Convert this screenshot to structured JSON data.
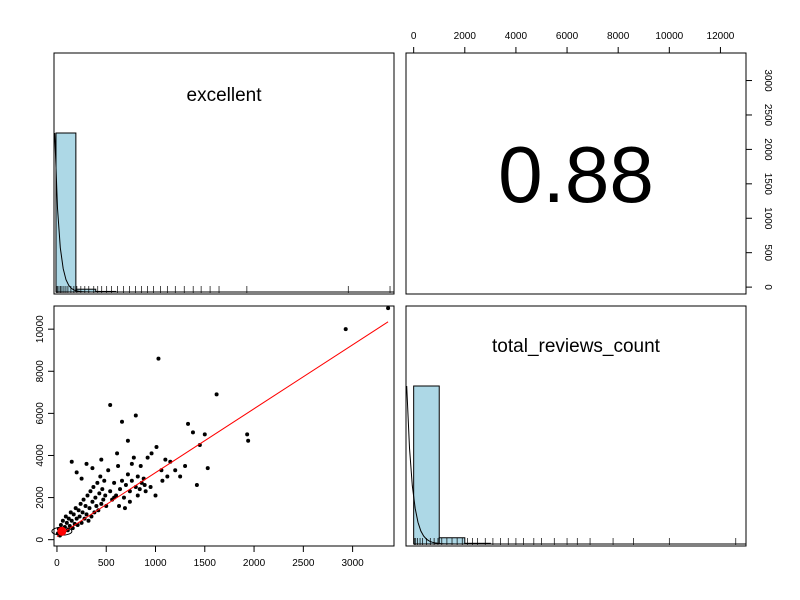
{
  "chart_data": {
    "type": "pairs",
    "variables": [
      "excellent",
      "total_reviews_count"
    ],
    "correlation": {
      "label": "0.88",
      "value": 0.88
    },
    "panels": {
      "excellent_hist": {
        "label": "excellent",
        "bins": [
          {
            "x0": 0,
            "x1": 200,
            "count": 2280
          },
          {
            "x0": 200,
            "x1": 400,
            "count": 40
          },
          {
            "x0": 400,
            "x1": 600,
            "count": 8
          }
        ],
        "xlim": [
          -20,
          3400
        ],
        "rug": [
          5,
          15,
          30,
          45,
          60,
          80,
          100,
          120,
          150,
          180,
          210,
          250,
          290,
          330,
          380,
          420,
          460,
          510,
          560,
          620,
          680,
          740,
          800,
          860,
          920,
          980,
          1050,
          1120,
          1200,
          1290,
          1380,
          1460,
          1550,
          1640,
          1920,
          2940,
          3360
        ]
      },
      "total_hist": {
        "label": "total_reviews_count",
        "bins": [
          {
            "x0": 0,
            "x1": 1000,
            "count": 2280
          },
          {
            "x0": 1000,
            "x1": 2000,
            "count": 90
          },
          {
            "x0": 2000,
            "x1": 3000,
            "count": 10
          }
        ],
        "xlim": [
          -300,
          13000
        ],
        "rug": [
          30,
          80,
          150,
          250,
          350,
          500,
          650,
          800,
          950,
          1100,
          1300,
          1500,
          1700,
          1900,
          2100,
          2300,
          2500,
          2800,
          3100,
          3400,
          3700,
          4000,
          4300,
          4700,
          5000,
          5500,
          6000,
          6400,
          6900,
          7800,
          8600,
          10000,
          12600
        ]
      },
      "scatter": {
        "xlim": [
          -30,
          3420
        ],
        "ylim": [
          -300,
          11100
        ],
        "xticks": [
          0,
          500,
          1000,
          1500,
          2000,
          2500,
          3000
        ],
        "yticks": [
          0,
          2000,
          4000,
          6000,
          8000,
          10000
        ],
        "fit": {
          "x": [
            0,
            3360
          ],
          "y": [
            150,
            10350
          ]
        },
        "highlight": {
          "x": 50,
          "y": 400
        },
        "points": [
          [
            10,
            300
          ],
          [
            20,
            500
          ],
          [
            30,
            200
          ],
          [
            40,
            700
          ],
          [
            50,
            400
          ],
          [
            60,
            900
          ],
          [
            70,
            350
          ],
          [
            80,
            600
          ],
          [
            90,
            1100
          ],
          [
            100,
            800
          ],
          [
            110,
            450
          ],
          [
            120,
            1000
          ],
          [
            130,
            650
          ],
          [
            140,
            1300
          ],
          [
            150,
            900
          ],
          [
            160,
            550
          ],
          [
            170,
            1200
          ],
          [
            180,
            750
          ],
          [
            190,
            1500
          ],
          [
            200,
            1000
          ],
          [
            210,
            700
          ],
          [
            220,
            1400
          ],
          [
            230,
            1100
          ],
          [
            240,
            1700
          ],
          [
            250,
            800
          ],
          [
            260,
            1300
          ],
          [
            270,
            1900
          ],
          [
            280,
            1000
          ],
          [
            290,
            1600
          ],
          [
            300,
            1200
          ],
          [
            310,
            2100
          ],
          [
            320,
            900
          ],
          [
            330,
            1500
          ],
          [
            340,
            2300
          ],
          [
            350,
            1100
          ],
          [
            360,
            1800
          ],
          [
            370,
            2500
          ],
          [
            380,
            1300
          ],
          [
            390,
            2000
          ],
          [
            400,
            1600
          ],
          [
            410,
            2700
          ],
          [
            420,
            1400
          ],
          [
            430,
            2200
          ],
          [
            440,
            3000
          ],
          [
            450,
            1700
          ],
          [
            460,
            2400
          ],
          [
            470,
            1900
          ],
          [
            480,
            2800
          ],
          [
            490,
            2100
          ],
          [
            500,
            1600
          ],
          [
            520,
            3300
          ],
          [
            540,
            2300
          ],
          [
            560,
            1900
          ],
          [
            580,
            2700
          ],
          [
            600,
            2100
          ],
          [
            620,
            3500
          ],
          [
            640,
            2400
          ],
          [
            660,
            2800
          ],
          [
            680,
            2000
          ],
          [
            700,
            2600
          ],
          [
            720,
            3100
          ],
          [
            740,
            2300
          ],
          [
            760,
            2800
          ],
          [
            780,
            3900
          ],
          [
            800,
            2500
          ],
          [
            820,
            3000
          ],
          [
            840,
            2400
          ],
          [
            860,
            2700
          ],
          [
            880,
            2900
          ],
          [
            900,
            2300
          ],
          [
            150,
            3700
          ],
          [
            200,
            3200
          ],
          [
            250,
            2900
          ],
          [
            300,
            3600
          ],
          [
            360,
            3400
          ],
          [
            450,
            3800
          ],
          [
            540,
            6400
          ],
          [
            610,
            4100
          ],
          [
            660,
            5600
          ],
          [
            720,
            4700
          ],
          [
            760,
            3600
          ],
          [
            800,
            5900
          ],
          [
            850,
            3500
          ],
          [
            920,
            3900
          ],
          [
            960,
            4100
          ],
          [
            1010,
            4400
          ],
          [
            1030,
            8600
          ],
          [
            1060,
            3300
          ],
          [
            1100,
            3800
          ],
          [
            1150,
            3700
          ],
          [
            1200,
            3300
          ],
          [
            1250,
            3000
          ],
          [
            1300,
            3500
          ],
          [
            1330,
            5500
          ],
          [
            1380,
            5100
          ],
          [
            1420,
            2600
          ],
          [
            1450,
            4500
          ],
          [
            1500,
            5000
          ],
          [
            1530,
            3400
          ],
          [
            1620,
            6900
          ],
          [
            1930,
            5000
          ],
          [
            1940,
            4700
          ],
          [
            2930,
            10000
          ],
          [
            3360,
            11000
          ],
          [
            580,
            2000
          ],
          [
            630,
            1600
          ],
          [
            690,
            1500
          ],
          [
            740,
            1800
          ],
          [
            820,
            2100
          ],
          [
            890,
            2600
          ],
          [
            950,
            2500
          ],
          [
            1000,
            2100
          ],
          [
            1070,
            2800
          ],
          [
            1120,
            3000
          ]
        ]
      }
    },
    "top_axis": {
      "ticks": [
        0,
        2000,
        4000,
        6000,
        8000,
        10000,
        12000
      ],
      "xlim": [
        -300,
        13000
      ]
    },
    "right_axis": {
      "ticks": [
        0,
        500,
        1000,
        1500,
        2000,
        2500,
        3000
      ],
      "ylim": [
        -100,
        3400
      ]
    }
  }
}
